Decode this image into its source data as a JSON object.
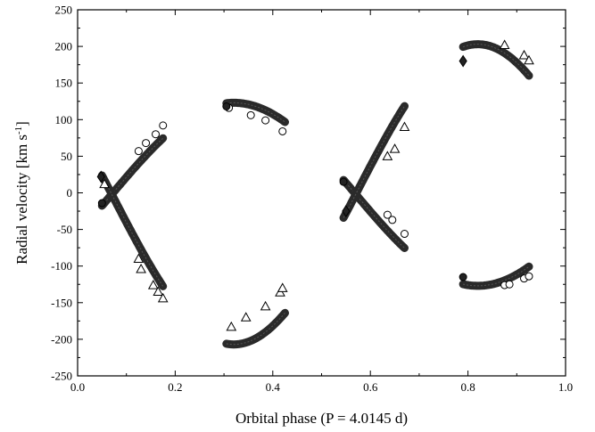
{
  "chart_data": {
    "type": "scatter",
    "xlabel": "Orbital phase (P = 4.0145 d)",
    "ylabel_main": "Radial velocity [km s",
    "ylabel_sup": "-1",
    "ylabel_close": "]",
    "xlim": [
      0.0,
      1.0
    ],
    "ylim": [
      -250,
      250
    ],
    "x_ticks": [
      "0.0",
      "0.2",
      "0.4",
      "0.6",
      "0.8",
      "1.0"
    ],
    "y_ticks": [
      "-250",
      "-200",
      "-150",
      "-100",
      "-50",
      "0",
      "50",
      "100",
      "150",
      "200",
      "250"
    ],
    "series": [
      {
        "marker": "circle-open",
        "points": [
          [
            0.125,
            57
          ],
          [
            0.14,
            68
          ],
          [
            0.16,
            80
          ],
          [
            0.175,
            92
          ],
          [
            0.31,
            116
          ],
          [
            0.355,
            106
          ],
          [
            0.385,
            99
          ],
          [
            0.42,
            84
          ],
          [
            0.635,
            -30
          ],
          [
            0.645,
            -37
          ],
          [
            0.67,
            -56
          ],
          [
            0.875,
            -126
          ],
          [
            0.885,
            -125
          ],
          [
            0.915,
            -117
          ],
          [
            0.925,
            -114
          ]
        ]
      },
      {
        "marker": "circle-filled",
        "points": [
          [
            0.05,
            -14
          ],
          [
            0.305,
            118
          ],
          [
            0.545,
            15
          ],
          [
            0.79,
            -115
          ]
        ]
      },
      {
        "marker": "triangle-open",
        "points": [
          [
            0.055,
            12
          ],
          [
            0.125,
            -90
          ],
          [
            0.13,
            -104
          ],
          [
            0.155,
            -126
          ],
          [
            0.165,
            -135
          ],
          [
            0.175,
            -144
          ],
          [
            0.315,
            -183
          ],
          [
            0.345,
            -170
          ],
          [
            0.385,
            -155
          ],
          [
            0.415,
            -136
          ],
          [
            0.42,
            -130
          ],
          [
            0.635,
            50
          ],
          [
            0.65,
            60
          ],
          [
            0.67,
            90
          ],
          [
            0.875,
            202
          ],
          [
            0.915,
            188
          ],
          [
            0.925,
            181
          ]
        ]
      },
      {
        "marker": "diamond-filled",
        "points": [
          [
            0.048,
            22
          ],
          [
            0.55,
            -25
          ],
          [
            0.79,
            180
          ]
        ]
      }
    ],
    "curves": [
      {
        "x0": 0.05,
        "x1": 0.175,
        "amp": 1
      },
      {
        "x0": 0.05,
        "x1": 0.175,
        "amp": -1
      },
      {
        "x0": 0.305,
        "x1": 0.425,
        "amp": 1
      },
      {
        "x0": 0.305,
        "x1": 0.425,
        "amp": -1
      },
      {
        "x0": 0.545,
        "x1": 0.67,
        "amp": 1
      },
      {
        "x0": 0.545,
        "x1": 0.67,
        "amp": -1
      },
      {
        "x0": 0.79,
        "x1": 0.925,
        "amp": 1
      },
      {
        "x0": 0.79,
        "x1": 0.925,
        "amp": -1
      }
    ],
    "curve_params": {
      "gamma": -2,
      "K_primary": 125,
      "K_secondary": 205,
      "phase0": 0.07,
      "period_fraction": 1.0
    },
    "grid": false,
    "legend": "none"
  }
}
